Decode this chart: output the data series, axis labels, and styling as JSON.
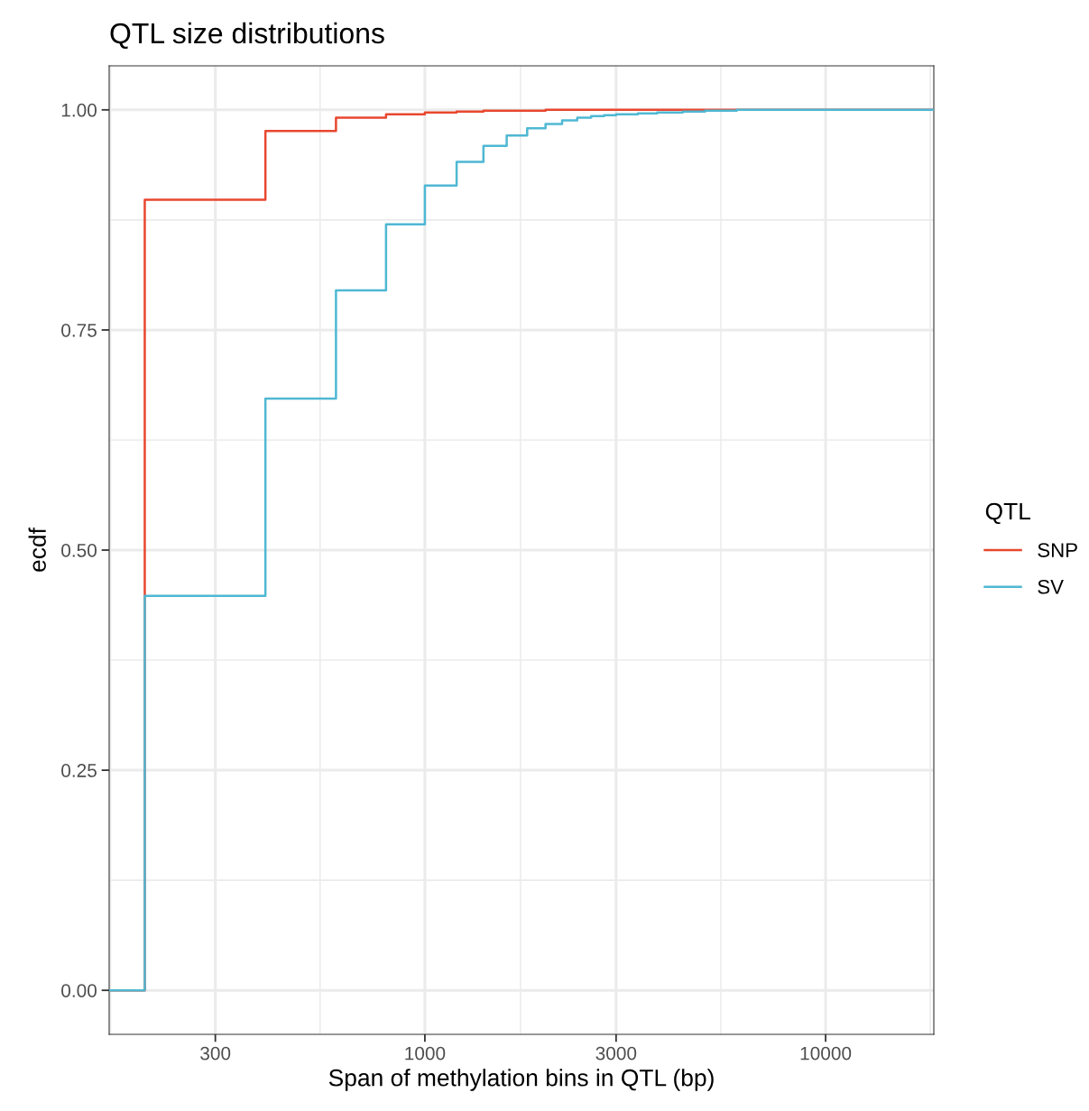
{
  "chart_data": {
    "type": "step",
    "title": "QTL size distributions",
    "xlabel": "Span of methylation bins in QTL (bp)",
    "ylabel": "ecdf",
    "legend_title": "QTL",
    "series": [
      {
        "name": "SNP",
        "color": "#e8472f",
        "x": [
          163,
          200,
          400,
          600,
          800,
          1000,
          1200,
          1400,
          2000,
          18620
        ],
        "values": [
          0,
          0.898,
          0.976,
          0.991,
          0.995,
          0.997,
          0.998,
          0.999,
          1.0,
          1.0
        ]
      },
      {
        "name": "SV",
        "color": "#4fb8d3",
        "x": [
          163,
          200,
          400,
          600,
          800,
          1000,
          1200,
          1400,
          1600,
          1800,
          2000,
          2200,
          2400,
          2600,
          2800,
          3000,
          3400,
          3800,
          4400,
          5000,
          6000,
          18620
        ],
        "values": [
          0,
          0.448,
          0.672,
          0.795,
          0.87,
          0.914,
          0.941,
          0.959,
          0.971,
          0.979,
          0.984,
          0.988,
          0.991,
          0.993,
          0.994,
          0.995,
          0.996,
          0.997,
          0.998,
          0.999,
          1.0,
          1.0
        ]
      }
    ],
    "log": "x",
    "xlim": [
      163,
      18620
    ],
    "xticks": [
      300,
      1000,
      3000,
      10000
    ],
    "ylim": [
      -0.05,
      1.05
    ],
    "yticks": [
      {
        "value": 0,
        "label": "0.00"
      },
      {
        "value": 0.25,
        "label": "0.25"
      },
      {
        "value": 0.5,
        "label": "0.50"
      },
      {
        "value": 0.75,
        "label": "0.75"
      },
      {
        "value": 1.0,
        "label": "1.00"
      }
    ],
    "grid": true,
    "legend": "right",
    "line_style": "solid",
    "marker": "none"
  }
}
